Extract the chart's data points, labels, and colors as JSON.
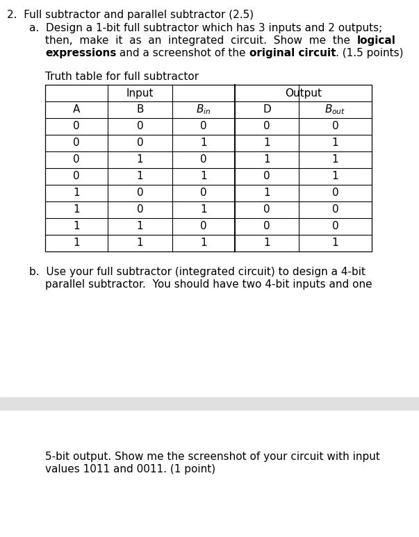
{
  "bg_color": "#ffffff",
  "gray_band_color": "#e0e0e0",
  "table_data": [
    [
      0,
      0,
      0,
      0,
      0
    ],
    [
      0,
      0,
      1,
      1,
      1
    ],
    [
      0,
      1,
      0,
      1,
      1
    ],
    [
      0,
      1,
      1,
      0,
      1
    ],
    [
      1,
      0,
      0,
      1,
      0
    ],
    [
      1,
      0,
      1,
      0,
      0
    ],
    [
      1,
      1,
      0,
      0,
      0
    ],
    [
      1,
      1,
      1,
      1,
      1
    ]
  ],
  "input_label": "Input",
  "output_label": "Output",
  "table_title": "Truth table for full subtractor",
  "font_size_main": 11.0,
  "font_size_table": 11.0
}
